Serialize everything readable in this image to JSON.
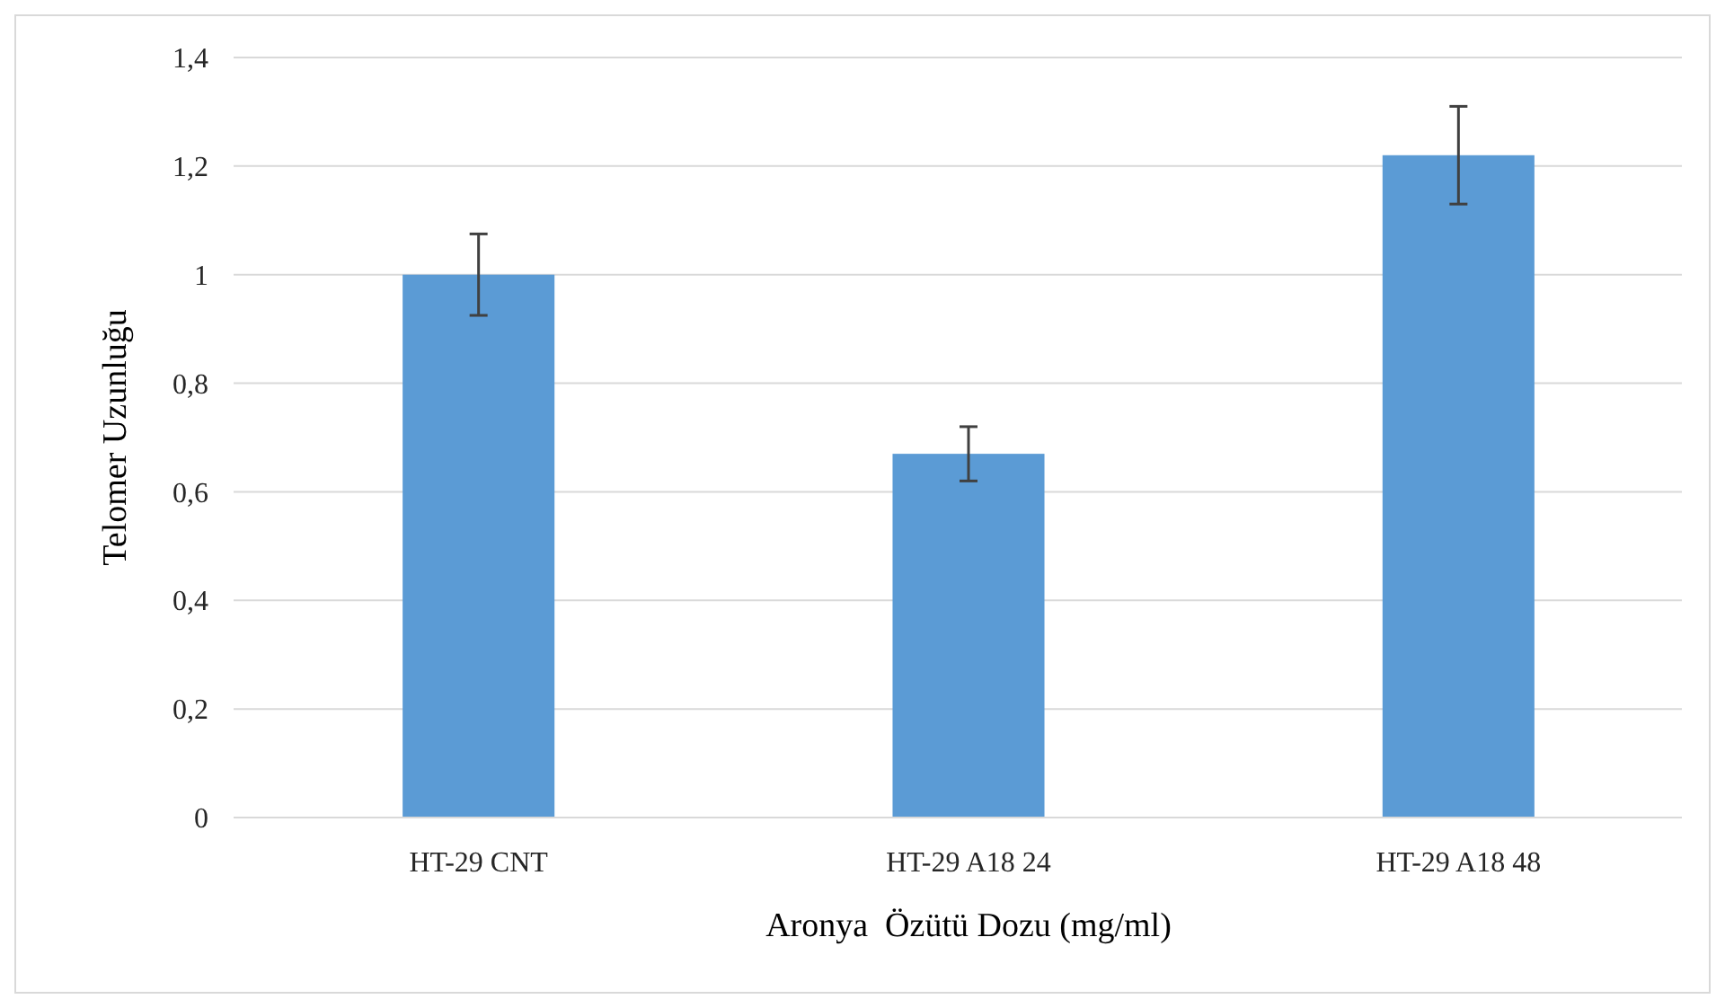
{
  "chart_data": {
    "type": "bar",
    "xlabel": "Aronya  Özütü Dozu (mg/ml)",
    "ylabel": "Telomer Uzunluğu",
    "categories": [
      "HT-29 CNT",
      "HT-29 A18 24",
      "HT-29 A18 48"
    ],
    "values": [
      1.0,
      0.67,
      1.22
    ],
    "errors": [
      0.075,
      0.05,
      0.09
    ],
    "color": "#5b9bd5",
    "ylim": [
      0,
      1.4
    ],
    "yticks": [
      0,
      {
        "value": 0.2,
        "label": "0,2"
      },
      {
        "value": 0.4,
        "label": "0,4"
      },
      {
        "value": 0.6,
        "label": "0,6"
      },
      {
        "value": 0.8,
        "label": "0,8"
      },
      1,
      {
        "value": 1.2,
        "label": "1,2"
      },
      {
        "value": 1.4,
        "label": "1,4"
      }
    ],
    "grid": "y"
  }
}
